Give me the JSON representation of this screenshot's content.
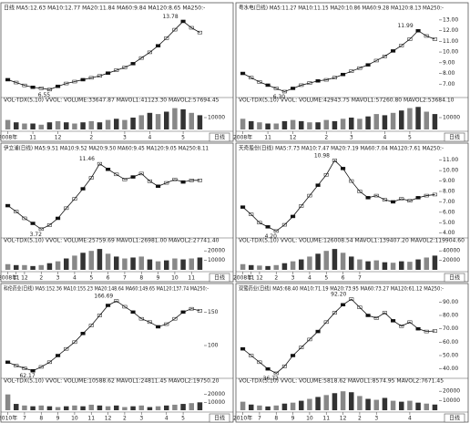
{
  "chart_data": [
    {
      "type": "stock",
      "title": "日线 MA5:12.63 MA10:12.77 MA20:11.84 MA60:9.84 MA120:8.65 MA250:-",
      "categories": [
        "2008年",
        null,
        null,
        "11",
        null,
        null,
        "12",
        null,
        null,
        null,
        "2",
        null,
        null,
        null,
        "3",
        null,
        null,
        "4",
        null,
        null,
        null,
        "5",
        null,
        null
      ],
      "values": [
        7.6,
        7.3,
        7.0,
        6.8,
        6.7,
        6.55,
        6.9,
        7.2,
        7.4,
        7.6,
        7.8,
        8.0,
        8.3,
        8.6,
        8.9,
        9.3,
        9.9,
        10.5,
        11.2,
        12.0,
        12.9,
        13.78,
        13.1,
        12.6
      ],
      "value_labels": [
        null,
        null,
        null,
        null,
        null,
        "6.55",
        null,
        null,
        null,
        null,
        null,
        null,
        null,
        null,
        null,
        null,
        null,
        null,
        null,
        null,
        null,
        "13.78",
        null,
        null
      ],
      "ylim": [
        6,
        14.5
      ],
      "color": "#111",
      "volume_title": "VOL-TDX(5,10) VVOL: VOLUME:33647.87 MAVOL1:41123.30 MAVOL2:57694.45",
      "volume": [
        8000,
        6000,
        5000,
        5000,
        4000,
        6000,
        7000,
        6000,
        5000,
        6000,
        7000,
        6000,
        8000,
        9000,
        8000,
        10000,
        12000,
        14000,
        13000,
        15000,
        18000,
        17000,
        14000,
        12000
      ],
      "volume_ylim": [
        0,
        20000
      ],
      "volume_yticks": [
        10000
      ],
      "period": "日线"
    },
    {
      "type": "stock",
      "title": "粤水电(日线) MA5:11.27 MA10:11.15 MA20:10.86 MA60:9.28 MA120:8.13 MA250:-",
      "categories": [
        "2008年",
        null,
        null,
        "11",
        null,
        null,
        "12",
        null,
        null,
        null,
        "2",
        null,
        null,
        "3",
        null,
        null,
        null,
        "4",
        null,
        null,
        "5",
        null,
        null,
        null
      ],
      "values": [
        8.0,
        7.6,
        7.2,
        6.9,
        6.6,
        6.3,
        6.6,
        6.9,
        7.1,
        7.3,
        7.4,
        7.6,
        7.9,
        8.2,
        8.5,
        8.8,
        9.2,
        9.6,
        10.1,
        10.6,
        11.2,
        11.99,
        11.5,
        11.2
      ],
      "value_labels": [
        null,
        null,
        null,
        null,
        null,
        "6.30",
        null,
        null,
        null,
        null,
        null,
        null,
        null,
        null,
        null,
        null,
        null,
        null,
        null,
        null,
        null,
        "11.99",
        null,
        null
      ],
      "ylim": [
        6,
        13.5
      ],
      "color": "#111",
      "yticks": [
        {
          "value": 13,
          "label": "13.00"
        },
        {
          "value": 12,
          "label": "12.00"
        },
        {
          "value": 11,
          "label": "11.00"
        },
        {
          "value": 10,
          "label": "10.00"
        },
        {
          "value": 9,
          "label": "9.00"
        },
        {
          "value": 8,
          "label": "8.00"
        },
        {
          "value": 7,
          "label": "7.00"
        }
      ],
      "volume_title": "VOL-TDX(5,10) VVOL: VOLUME:42943.75 MAVOL1:57260.80 MAVOL2:53684.10",
      "volume": [
        9000,
        7000,
        6000,
        5000,
        5000,
        7000,
        8000,
        7000,
        6000,
        6000,
        8000,
        7000,
        9000,
        10000,
        9000,
        11000,
        13000,
        12000,
        14000,
        16000,
        18000,
        19000,
        15000,
        13000
      ],
      "volume_ylim": [
        0,
        20000
      ],
      "volume_yticks": [
        10000
      ],
      "period": "日线"
    },
    {
      "type": "stock",
      "title": "伊立浦(日线) MA5:9.51 MA10:9.52 MA20:9.50 MA60:9.45 MA120:9.05 MA250:8.11",
      "categories": [
        "2008年",
        "11",
        "12",
        null,
        "2",
        null,
        "3",
        null,
        "4",
        null,
        "5",
        null,
        "6",
        null,
        "7",
        null,
        "8",
        null,
        "9",
        null,
        "10",
        null,
        "11",
        null
      ],
      "values": [
        6.5,
        5.8,
        5.0,
        4.4,
        3.72,
        4.2,
        5.0,
        6.2,
        7.3,
        8.5,
        9.8,
        11.46,
        10.8,
        10.2,
        9.6,
        9.9,
        10.3,
        9.4,
        8.8,
        9.2,
        9.6,
        9.3,
        9.5,
        9.5
      ],
      "value_labels": [
        null,
        null,
        null,
        null,
        "3.72",
        null,
        null,
        null,
        null,
        null,
        null,
        "11.46",
        null,
        null,
        null,
        null,
        null,
        null,
        null,
        null,
        null,
        null,
        null,
        null
      ],
      "ylim": [
        3,
        12.5
      ],
      "color": "#111",
      "volume_title": "VOL-TDX(5,10) VVOL: VOLUME:25759.69 MAVOL1:26981.00 MAVOL2:27741.40",
      "volume": [
        6000,
        5000,
        5000,
        4000,
        5000,
        7000,
        9000,
        12000,
        15000,
        18000,
        20000,
        22000,
        17000,
        14000,
        12000,
        13000,
        14000,
        11000,
        9000,
        10000,
        12000,
        11000,
        12000,
        13000
      ],
      "volume_ylim": [
        0,
        25000
      ],
      "volume_yticks": [
        20000,
        10000
      ],
      "period": "日线"
    },
    {
      "type": "stock",
      "title": "天奇股份(日线) MA5:7.73 MA10:7.47 MA20:7.19 MA60:7.04 MA120:7.61 MA250:-",
      "categories": [
        "2008年",
        "11",
        "12",
        null,
        "2",
        null,
        "3",
        null,
        "4",
        null,
        "5",
        null,
        "6",
        null,
        "7",
        null,
        null,
        null,
        null,
        null,
        null,
        null,
        null,
        null
      ],
      "values": [
        6.5,
        5.8,
        5.0,
        4.6,
        4.2,
        4.8,
        5.6,
        6.6,
        7.6,
        8.6,
        9.6,
        10.98,
        10.2,
        9.0,
        8.0,
        7.4,
        7.6,
        7.2,
        7.0,
        7.3,
        7.1,
        7.4,
        7.6,
        7.7
      ],
      "value_labels": [
        null,
        null,
        null,
        null,
        "4.20",
        null,
        null,
        null,
        null,
        null,
        null,
        "10.98",
        null,
        null,
        null,
        null,
        null,
        null,
        null,
        null,
        null,
        null,
        null,
        null
      ],
      "ylim": [
        3.8,
        11.5
      ],
      "color": "#111",
      "yticks": [
        {
          "value": 11,
          "label": "11.00"
        },
        {
          "value": 10,
          "label": "10.00"
        },
        {
          "value": 9,
          "label": "9.00"
        },
        {
          "value": 8,
          "label": "8.00"
        },
        {
          "value": 7,
          "label": "7.00"
        },
        {
          "value": 6,
          "label": "6.00"
        },
        {
          "value": 5,
          "label": "5.00"
        },
        {
          "value": 4,
          "label": "4.00"
        }
      ],
      "volume_title": "VOL-TDX(5,10) VVOL: VOLUME:126008.54 MAVOL1:139407.20 MAVOL2:119904.60",
      "volume": [
        12000,
        10000,
        9000,
        8000,
        10000,
        14000,
        18000,
        22000,
        28000,
        34000,
        40000,
        44000,
        36000,
        28000,
        22000,
        18000,
        20000,
        16000,
        15000,
        18000,
        17000,
        22000,
        26000,
        30000
      ],
      "volume_ylim": [
        0,
        50000
      ],
      "volume_yticks": [
        40000,
        20000
      ],
      "period": "日线"
    },
    {
      "type": "stock",
      "title": "科伦药业(日线) MA5:152.36 MA10:155.23 MA20:148.64 MA60:149.65 MA120:137.74 MA250:-",
      "categories": [
        "2010年",
        null,
        "7",
        null,
        "8",
        null,
        "9",
        null,
        "10",
        null,
        "11",
        null,
        "12",
        null,
        "2",
        null,
        "3",
        null,
        null,
        "4",
        null,
        "5",
        null,
        null
      ],
      "values": [
        75,
        70,
        66,
        62.17,
        68,
        75,
        85,
        95,
        105,
        118,
        130,
        145,
        160,
        166.69,
        158,
        150,
        140,
        135,
        128,
        132,
        140,
        150,
        155,
        152
      ],
      "value_labels": [
        null,
        null,
        null,
        "62.17",
        null,
        null,
        null,
        null,
        null,
        null,
        null,
        null,
        null,
        "166.69",
        null,
        null,
        null,
        null,
        null,
        null,
        null,
        null,
        null,
        null
      ],
      "ylim": [
        55,
        175
      ],
      "color": "#111",
      "yticks": [
        150,
        100
      ],
      "volume_title": "VOL-TDX(5,10) VVOL: VOLUME:10588.62 MAVOL1:24811.45 MAVOL2:19750.20",
      "volume": [
        20000,
        8000,
        6000,
        5000,
        6000,
        5000,
        4000,
        5000,
        6000,
        5000,
        7000,
        6000,
        5000,
        6000,
        4000,
        5000,
        6000,
        4000,
        5000,
        6000,
        7000,
        8000,
        9000,
        10000
      ],
      "volume_ylim": [
        0,
        30000
      ],
      "volume_yticks": [
        20000,
        10000
      ],
      "period": "日线"
    },
    {
      "type": "stock",
      "title": "双鹭药业(日线) MA5:68.40 MA10:71.19 MA20:73.95 MA60:73.27 MA120:61.12 MA250:-",
      "categories": [
        "2010年",
        null,
        "7",
        null,
        "8",
        null,
        "9",
        null,
        "10",
        null,
        "11",
        null,
        "12",
        null,
        "2",
        null,
        "3",
        null,
        null,
        null,
        "4",
        null,
        null,
        null
      ],
      "values": [
        55,
        50,
        45,
        40,
        36.72,
        42,
        50,
        56,
        62,
        68,
        75,
        82,
        88,
        92.2,
        86,
        80,
        78,
        82,
        76,
        72,
        75,
        70,
        68,
        68.4
      ],
      "value_labels": [
        null,
        null,
        null,
        null,
        "36.72",
        null,
        null,
        null,
        null,
        null,
        null,
        null,
        null,
        "92.20",
        null,
        null,
        null,
        null,
        null,
        null,
        null,
        null,
        null,
        null
      ],
      "ylim": [
        35,
        95
      ],
      "color": "#111",
      "yticks": [
        {
          "value": 90,
          "label": "90.00"
        },
        {
          "value": 80,
          "label": "80.00"
        },
        {
          "value": 70,
          "label": "70.00"
        },
        {
          "value": 60,
          "label": "60.00"
        },
        {
          "value": 50,
          "label": "50.00"
        },
        {
          "value": 40,
          "label": "40.00"
        }
      ],
      "volume_title": "VOL-TDX(5,10) VVOL: VOLUME:5818.62 MAVOL1:8574.95 MAVOL2:7671.45",
      "volume": [
        9000,
        6000,
        5000,
        4000,
        5000,
        7000,
        8000,
        10000,
        12000,
        14000,
        16000,
        18000,
        20000,
        19000,
        15000,
        12000,
        11000,
        13000,
        10000,
        9000,
        10000,
        8000,
        7000,
        6000
      ],
      "volume_ylim": [
        0,
        25000
      ],
      "volume_yticks": [
        20000,
        10000
      ],
      "period": "日线"
    }
  ]
}
